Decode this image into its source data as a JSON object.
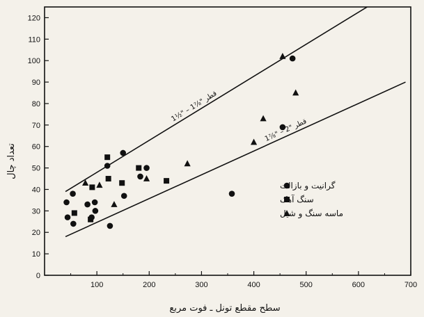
{
  "chart_data": {
    "type": "scatter",
    "xlabel": "سطح مقطع تونل ـ فوت مربع",
    "ylabel": "تعداد چال",
    "xlim": [
      0,
      700
    ],
    "ylim": [
      0,
      125
    ],
    "x_ticks": [
      100,
      200,
      300,
      400,
      500,
      600,
      700
    ],
    "y_ticks": [
      0,
      10,
      20,
      30,
      40,
      50,
      60,
      70,
      80,
      90,
      100,
      110,
      120
    ],
    "grid": false,
    "legend_position": "right",
    "series": [
      {
        "name": "گرانیت و بازالت",
        "marker": "circle",
        "points": [
          [
            42,
            34
          ],
          [
            44,
            27
          ],
          [
            54,
            38
          ],
          [
            55,
            24
          ],
          [
            82,
            33
          ],
          [
            90,
            27
          ],
          [
            96,
            34
          ],
          [
            97,
            30
          ],
          [
            120,
            51
          ],
          [
            125,
            23
          ],
          [
            150,
            57
          ],
          [
            152,
            37
          ],
          [
            183,
            46
          ],
          [
            195,
            50
          ],
          [
            358,
            38
          ],
          [
            455,
            69
          ],
          [
            474,
            101
          ]
        ]
      },
      {
        "name": "سنگ آهک",
        "marker": "square",
        "points": [
          [
            57,
            29
          ],
          [
            88,
            26
          ],
          [
            91,
            41
          ],
          [
            120,
            55
          ],
          [
            122,
            45
          ],
          [
            148,
            43
          ],
          [
            180,
            50
          ],
          [
            233,
            44
          ]
        ]
      },
      {
        "name": "ماسه سنگ و شیل",
        "marker": "triangle",
        "points": [
          [
            78,
            43
          ],
          [
            105,
            42
          ],
          [
            133,
            33
          ],
          [
            195,
            45
          ],
          [
            273,
            52
          ],
          [
            400,
            62
          ],
          [
            418,
            73
          ],
          [
            455,
            102
          ],
          [
            480,
            85
          ]
        ]
      }
    ],
    "trend_lines": [
      {
        "label": "1½\" – 1⅞\" قطر",
        "from": [
          40,
          39
        ],
        "to": [
          630,
          127
        ]
      },
      {
        "label": "1⅞\" – 2\" قطر",
        "from": [
          40,
          18
        ],
        "to": [
          690,
          90
        ]
      }
    ]
  }
}
